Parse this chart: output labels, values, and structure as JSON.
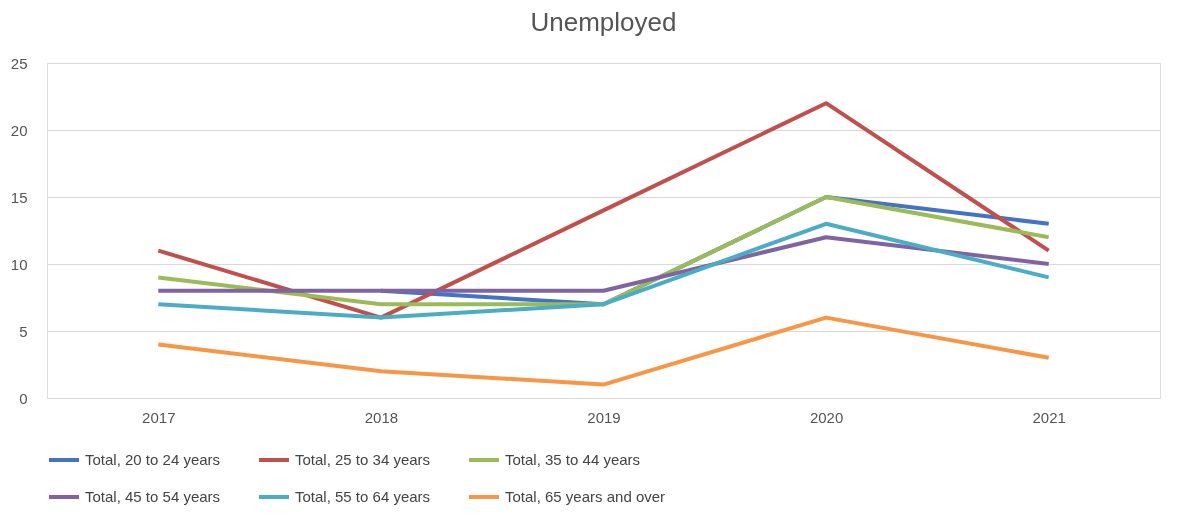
{
  "chart_data": {
    "type": "line",
    "title": "Unemployed",
    "categories": [
      "2017",
      "2018",
      "2019",
      "2020",
      "2021"
    ],
    "series": [
      {
        "name": "Total, 20 to 24 years",
        "color": "#4472c4",
        "values": [
          null,
          8,
          7,
          15,
          13
        ]
      },
      {
        "name": "Total, 25 to 34 years",
        "color": "#c0504d",
        "values": [
          11,
          6,
          14,
          22,
          11
        ]
      },
      {
        "name": "Total, 35 to 44 years",
        "color": "#9bbb59",
        "values": [
          9,
          7,
          7,
          15,
          12
        ]
      },
      {
        "name": "Total, 45 to 54 years",
        "color": "#8064a2",
        "values": [
          8,
          8,
          8,
          12,
          10
        ]
      },
      {
        "name": "Total, 55 to 64 years",
        "color": "#4bacc6",
        "values": [
          7,
          6,
          7,
          13,
          9
        ]
      },
      {
        "name": "Total, 65 years and over",
        "color": "#f79646",
        "values": [
          4,
          2,
          1,
          6,
          3
        ]
      }
    ],
    "ylim": [
      0,
      25
    ],
    "yticks": [
      0,
      5,
      10,
      15,
      20,
      25
    ],
    "grid": "y",
    "legend": "bottom",
    "marker": "none",
    "line_style": "solid"
  }
}
